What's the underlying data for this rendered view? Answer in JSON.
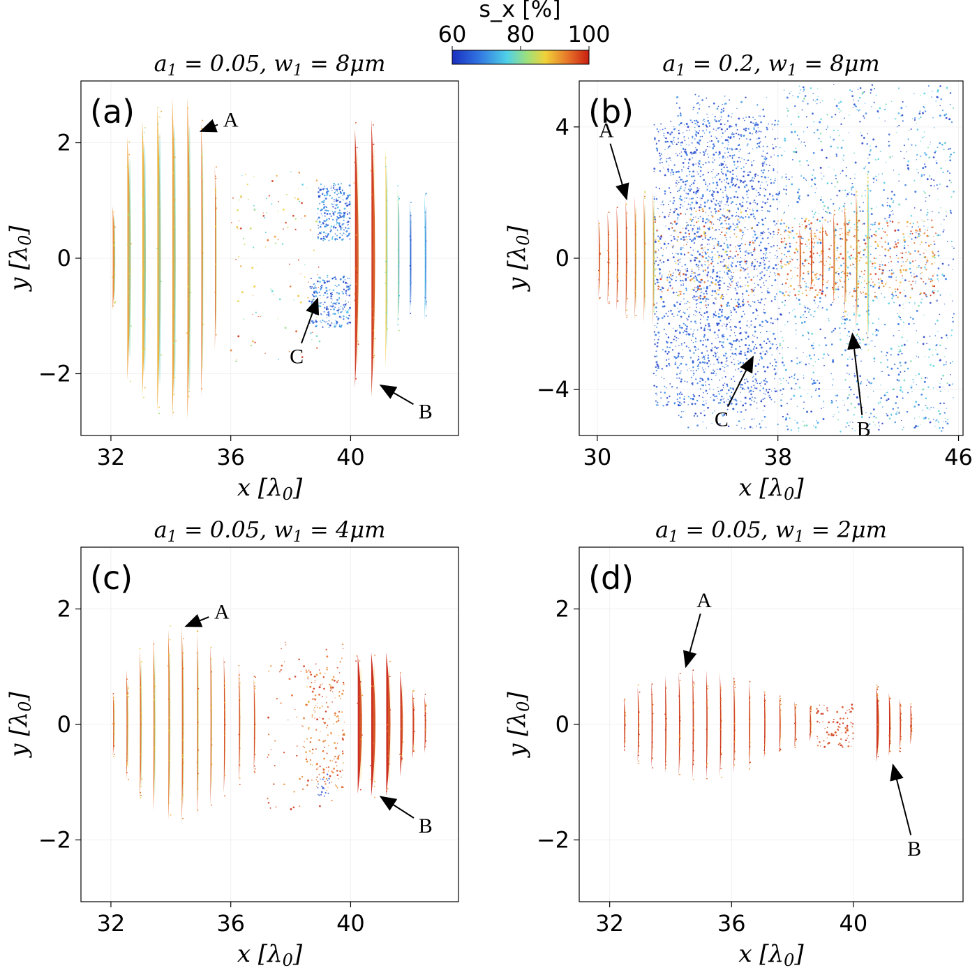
{
  "colors": {
    "colormap": [
      "#1a2fbf",
      "#2f6fe0",
      "#4fd0e8",
      "#9fe07a",
      "#f0d23a",
      "#e8782a",
      "#c81e10"
    ]
  },
  "colorbar": {
    "label": "s_x [%]",
    "ticks": [
      "60",
      "80",
      "100"
    ],
    "min": 60,
    "max": 100
  },
  "chart_data": [
    {
      "type": "scatter",
      "panel_label": "(a)",
      "title": "a_1 = 0.05, w_1 = 8μm",
      "xlabel": "x [λ0]",
      "ylabel": "y [λ0]",
      "xlim": [
        31,
        43.6
      ],
      "ylim": [
        -3.07,
        3.07
      ],
      "xticks": [
        "32",
        "36",
        "40"
      ],
      "yticks": [
        "−2",
        "0",
        "2"
      ],
      "annotations": [
        {
          "text": "A",
          "at": [
            35.0,
            2.2
          ],
          "text_at": [
            36.0,
            2.4
          ]
        },
        {
          "text": "C",
          "at": [
            38.9,
            -0.7
          ],
          "text_at": [
            38.2,
            -1.7
          ]
        },
        {
          "text": "B",
          "at": [
            41.0,
            -2.2
          ],
          "text_at": [
            42.5,
            -2.65
          ]
        }
      ],
      "bands": [
        {
          "x": 32.1,
          "h": 0.9,
          "s": 93,
          "w": 0.11
        },
        {
          "x": 32.6,
          "h": 2.1,
          "s": 91,
          "w": 0.16
        },
        {
          "x": 33.1,
          "h": 2.4,
          "s": 90,
          "w": 0.16
        },
        {
          "x": 33.6,
          "h": 2.65,
          "s": 90,
          "w": 0.16
        },
        {
          "x": 34.1,
          "h": 2.8,
          "s": 91,
          "w": 0.15
        },
        {
          "x": 34.6,
          "h": 2.8,
          "s": 92,
          "w": 0.14
        },
        {
          "x": 35.05,
          "h": 2.4,
          "s": 94,
          "w": 0.08
        },
        {
          "x": 35.5,
          "h": 1.6,
          "s": 96,
          "w": 0.04
        },
        {
          "x": 40.2,
          "h": 2.25,
          "s": 99,
          "w": 0.17
        },
        {
          "x": 40.75,
          "h": 2.4,
          "s": 99,
          "w": 0.17
        },
        {
          "x": 41.2,
          "h": 1.9,
          "s": 88,
          "w": 0.08
        },
        {
          "x": 41.6,
          "h": 1.2,
          "s": 82,
          "w": 0.04
        },
        {
          "x": 42.0,
          "h": 1.0,
          "s": 72,
          "w": 0.03
        },
        {
          "x": 42.5,
          "h": 1.1,
          "s": 75,
          "w": 0.03
        }
      ],
      "clusters": [
        {
          "x0": 38.9,
          "x1": 40.0,
          "y0": 0.3,
          "y1": 1.3,
          "s0": 60,
          "s1": 75,
          "n": 260
        },
        {
          "x0": 38.6,
          "x1": 40.0,
          "y0": -1.2,
          "y1": -0.3,
          "s0": 60,
          "s1": 75,
          "n": 240
        },
        {
          "x0": 36.0,
          "x1": 39.0,
          "y0": -1.8,
          "y1": 1.5,
          "s0": 75,
          "s1": 100,
          "n": 120
        }
      ]
    },
    {
      "type": "scatter",
      "panel_label": "(b)",
      "title": "a_1 = 0.2, w_1 = 8μm",
      "xlabel": "x [λ0]",
      "ylabel": "y [λ0]",
      "xlim": [
        29.2,
        46.2
      ],
      "ylim": [
        -5.4,
        5.4
      ],
      "xticks": [
        "30",
        "38",
        "46"
      ],
      "yticks": [
        "−4",
        "0",
        "4"
      ],
      "annotations": [
        {
          "text": "A",
          "at": [
            31.3,
            1.8
          ],
          "text_at": [
            30.4,
            3.9
          ]
        },
        {
          "text": "C",
          "at": [
            36.9,
            -3.0
          ],
          "text_at": [
            35.5,
            -4.9
          ]
        },
        {
          "text": "B",
          "at": [
            41.3,
            -2.3
          ],
          "text_at": [
            41.8,
            -5.2
          ]
        }
      ],
      "bands": [
        {
          "x": 30.1,
          "h": 1.2,
          "s": 99,
          "w": 0.07
        },
        {
          "x": 30.5,
          "h": 1.4,
          "s": 99,
          "w": 0.07
        },
        {
          "x": 30.9,
          "h": 1.6,
          "s": 99,
          "w": 0.07
        },
        {
          "x": 31.3,
          "h": 1.8,
          "s": 98,
          "w": 0.07
        },
        {
          "x": 31.7,
          "h": 1.9,
          "s": 96,
          "w": 0.07
        },
        {
          "x": 32.1,
          "h": 2.0,
          "s": 94,
          "w": 0.06
        },
        {
          "x": 32.5,
          "h": 2.1,
          "s": 92,
          "w": 0.06
        },
        {
          "x": 39.0,
          "h": 0.9,
          "s": 99,
          "w": 0.08
        },
        {
          "x": 39.5,
          "h": 1.0,
          "s": 99,
          "w": 0.08
        },
        {
          "x": 40.0,
          "h": 1.1,
          "s": 98,
          "w": 0.08
        },
        {
          "x": 40.5,
          "h": 1.4,
          "s": 97,
          "w": 0.08
        },
        {
          "x": 41.0,
          "h": 1.7,
          "s": 96,
          "w": 0.08
        },
        {
          "x": 41.5,
          "h": 2.2,
          "s": 94,
          "w": 0.08
        },
        {
          "x": 42.0,
          "h": 2.8,
          "s": 88,
          "w": 0.07
        }
      ],
      "clusters": [
        {
          "x0": 32.5,
          "x1": 38.0,
          "y0": -4.5,
          "y1": 4.2,
          "s0": 60,
          "s1": 70,
          "n": 1500
        },
        {
          "x0": 33.5,
          "x1": 37.5,
          "y0": -5.2,
          "y1": 5.0,
          "s0": 60,
          "s1": 72,
          "n": 700
        },
        {
          "x0": 38.0,
          "x1": 45.8,
          "y0": -5.3,
          "y1": 5.3,
          "s0": 60,
          "s1": 80,
          "n": 1300
        },
        {
          "x0": 38.0,
          "x1": 45.0,
          "y0": -1.2,
          "y1": 1.2,
          "s0": 88,
          "s1": 100,
          "n": 400
        },
        {
          "x0": 32.5,
          "x1": 37.0,
          "y0": -1.5,
          "y1": 1.5,
          "s0": 85,
          "s1": 100,
          "n": 200
        }
      ]
    },
    {
      "type": "scatter",
      "panel_label": "(c)",
      "title": "a_1 = 0.05, w_1 = 4μm",
      "xlabel": "x [λ0]",
      "ylabel": "y [λ0]",
      "xlim": [
        31,
        43.6
      ],
      "ylim": [
        -3.07,
        3.07
      ],
      "xticks": [
        "32",
        "36",
        "40"
      ],
      "yticks": [
        "−2",
        "0",
        "2"
      ],
      "annotations": [
        {
          "text": "A",
          "at": [
            34.5,
            1.7
          ],
          "text_at": [
            35.7,
            1.95
          ]
        },
        {
          "text": "B",
          "at": [
            41.0,
            -1.25
          ],
          "text_at": [
            42.5,
            -1.75
          ]
        }
      ],
      "bands": [
        {
          "x": 32.1,
          "h": 0.55,
          "s": 97,
          "w": 0.05
        },
        {
          "x": 32.55,
          "h": 0.95,
          "s": 96,
          "w": 0.07
        },
        {
          "x": 33.0,
          "h": 1.3,
          "s": 95,
          "w": 0.08
        },
        {
          "x": 33.45,
          "h": 1.5,
          "s": 94,
          "w": 0.08
        },
        {
          "x": 33.95,
          "h": 1.65,
          "s": 94,
          "w": 0.08
        },
        {
          "x": 34.4,
          "h": 1.7,
          "s": 95,
          "w": 0.08
        },
        {
          "x": 34.9,
          "h": 1.6,
          "s": 96,
          "w": 0.06
        },
        {
          "x": 35.35,
          "h": 1.4,
          "s": 97,
          "w": 0.04
        },
        {
          "x": 35.8,
          "h": 1.2,
          "s": 98,
          "w": 0.03
        },
        {
          "x": 36.3,
          "h": 1.0,
          "s": 98,
          "w": 0.02
        },
        {
          "x": 36.8,
          "h": 0.8,
          "s": 98,
          "w": 0.02
        },
        {
          "x": 40.3,
          "h": 1.2,
          "s": 100,
          "w": 0.2
        },
        {
          "x": 40.75,
          "h": 1.25,
          "s": 100,
          "w": 0.2
        },
        {
          "x": 41.25,
          "h": 1.25,
          "s": 100,
          "w": 0.2
        },
        {
          "x": 41.7,
          "h": 0.9,
          "s": 100,
          "w": 0.12
        },
        {
          "x": 42.1,
          "h": 0.6,
          "s": 100,
          "w": 0.07
        },
        {
          "x": 42.5,
          "h": 0.5,
          "s": 100,
          "w": 0.04
        }
      ],
      "clusters": [
        {
          "x0": 38.4,
          "x1": 39.8,
          "y0": -1.1,
          "y1": 1.0,
          "s0": 90,
          "s1": 100,
          "n": 170
        },
        {
          "x0": 38.9,
          "x1": 39.3,
          "y0": -1.3,
          "y1": -0.8,
          "s0": 60,
          "s1": 68,
          "n": 18
        },
        {
          "x0": 37.2,
          "x1": 40.0,
          "y0": -1.5,
          "y1": 1.5,
          "s0": 92,
          "s1": 100,
          "n": 80
        }
      ]
    },
    {
      "type": "scatter",
      "panel_label": "(d)",
      "title": "a_1 = 0.05, w_1 = 2μm",
      "xlabel": "x [λ0]",
      "ylabel": "y [λ0]",
      "xlim": [
        31,
        43.6
      ],
      "ylim": [
        -3.07,
        3.07
      ],
      "xticks": [
        "32",
        "36",
        "40"
      ],
      "yticks": [
        "−2",
        "0",
        "2"
      ],
      "annotations": [
        {
          "text": "A",
          "at": [
            34.5,
            1.0
          ],
          "text_at": [
            35.1,
            2.15
          ]
        },
        {
          "text": "B",
          "at": [
            41.3,
            -0.7
          ],
          "text_at": [
            42.0,
            -2.15
          ]
        }
      ],
      "bands": [
        {
          "x": 32.5,
          "h": 0.45,
          "s": 100,
          "w": 0.05
        },
        {
          "x": 32.95,
          "h": 0.65,
          "s": 100,
          "w": 0.05
        },
        {
          "x": 33.4,
          "h": 0.75,
          "s": 100,
          "w": 0.05
        },
        {
          "x": 33.85,
          "h": 0.85,
          "s": 100,
          "w": 0.05
        },
        {
          "x": 34.3,
          "h": 0.9,
          "s": 100,
          "w": 0.05
        },
        {
          "x": 34.75,
          "h": 0.95,
          "s": 100,
          "w": 0.05
        },
        {
          "x": 35.2,
          "h": 0.95,
          "s": 100,
          "w": 0.05
        },
        {
          "x": 35.65,
          "h": 0.9,
          "s": 100,
          "w": 0.04
        },
        {
          "x": 36.1,
          "h": 0.85,
          "s": 100,
          "w": 0.04
        },
        {
          "x": 36.6,
          "h": 0.75,
          "s": 100,
          "w": 0.04
        },
        {
          "x": 37.1,
          "h": 0.6,
          "s": 100,
          "w": 0.035
        },
        {
          "x": 37.6,
          "h": 0.5,
          "s": 100,
          "w": 0.03
        },
        {
          "x": 38.1,
          "h": 0.4,
          "s": 100,
          "w": 0.025
        },
        {
          "x": 38.6,
          "h": 0.3,
          "s": 100,
          "w": 0.02
        },
        {
          "x": 40.8,
          "h": 0.65,
          "s": 100,
          "w": 0.12
        },
        {
          "x": 41.2,
          "h": 0.55,
          "s": 100,
          "w": 0.07
        },
        {
          "x": 41.55,
          "h": 0.45,
          "s": 100,
          "w": 0.05
        },
        {
          "x": 41.9,
          "h": 0.35,
          "s": 100,
          "w": 0.03
        }
      ],
      "clusters": [
        {
          "x0": 38.8,
          "x1": 40.0,
          "y0": -0.4,
          "y1": 0.35,
          "s0": 95,
          "s1": 100,
          "n": 90
        }
      ]
    }
  ]
}
